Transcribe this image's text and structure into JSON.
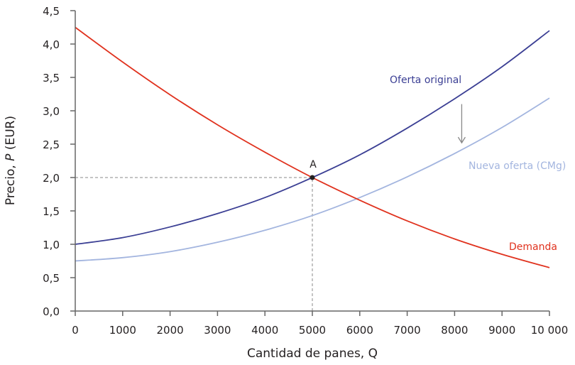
{
  "chart_data": {
    "type": "line",
    "title": "",
    "xlabel": "Cantidad de panes, Q",
    "ylabel_prefix": "Precio, ",
    "ylabel_var": "P",
    "ylabel_suffix": " (EUR)",
    "xlim": [
      0,
      10000
    ],
    "ylim": [
      0,
      4.5
    ],
    "grid": false,
    "legend": "inline labels",
    "x_ticks": [
      0,
      1000,
      2000,
      3000,
      4000,
      5000,
      6000,
      7000,
      8000,
      9000,
      10000
    ],
    "x_tick_labels": [
      "0",
      "1000",
      "2000",
      "3000",
      "4000",
      "5000",
      "6000",
      "7000",
      "8000",
      "9000",
      "10 000"
    ],
    "y_ticks": [
      0,
      0.5,
      1.0,
      1.5,
      2.0,
      2.5,
      3.0,
      3.5,
      4.0,
      4.5
    ],
    "y_tick_labels": [
      "0,0",
      "0,5",
      "1,0",
      "1,5",
      "2,0",
      "2,5",
      "3,0",
      "3,5",
      "4,0",
      "4,5"
    ],
    "x": [
      0,
      1000,
      2000,
      3000,
      4000,
      5000,
      6000,
      7000,
      8000,
      9000,
      10000
    ],
    "series": [
      {
        "name": "Oferta original",
        "color": "#3b3f94",
        "values": [
          1.0,
          1.1,
          1.26,
          1.46,
          1.7,
          2.0,
          2.34,
          2.74,
          3.18,
          3.66,
          4.2
        ]
      },
      {
        "name": "Nueva oferta (CMg)",
        "color": "#a3b5df",
        "values": [
          0.75,
          0.8,
          0.89,
          1.03,
          1.21,
          1.43,
          1.7,
          2.01,
          2.36,
          2.75,
          3.19
        ]
      },
      {
        "name": "Demanda",
        "color": "#e0321e",
        "values": [
          4.25,
          3.73,
          3.24,
          2.79,
          2.38,
          2.0,
          1.66,
          1.35,
          1.08,
          0.85,
          0.65
        ]
      }
    ],
    "annotations": [
      {
        "type": "point",
        "label": "A",
        "x": 5000,
        "y": 2.0
      },
      {
        "type": "dashed-guide",
        "from": [
          0,
          2.0
        ],
        "to": [
          5000,
          2.0
        ]
      },
      {
        "type": "dashed-guide",
        "from": [
          5000,
          0
        ],
        "to": [
          5000,
          2.0
        ]
      },
      {
        "type": "arrow",
        "direction": "down",
        "x": 8150,
        "from_y": 3.1,
        "to_y": 2.52,
        "meaning": "supply shifts down"
      }
    ]
  },
  "labels": {
    "point_a": "A",
    "oferta_original": "Oferta original",
    "nueva_oferta": "Nueva oferta (CMg)",
    "demanda": "Demanda"
  }
}
